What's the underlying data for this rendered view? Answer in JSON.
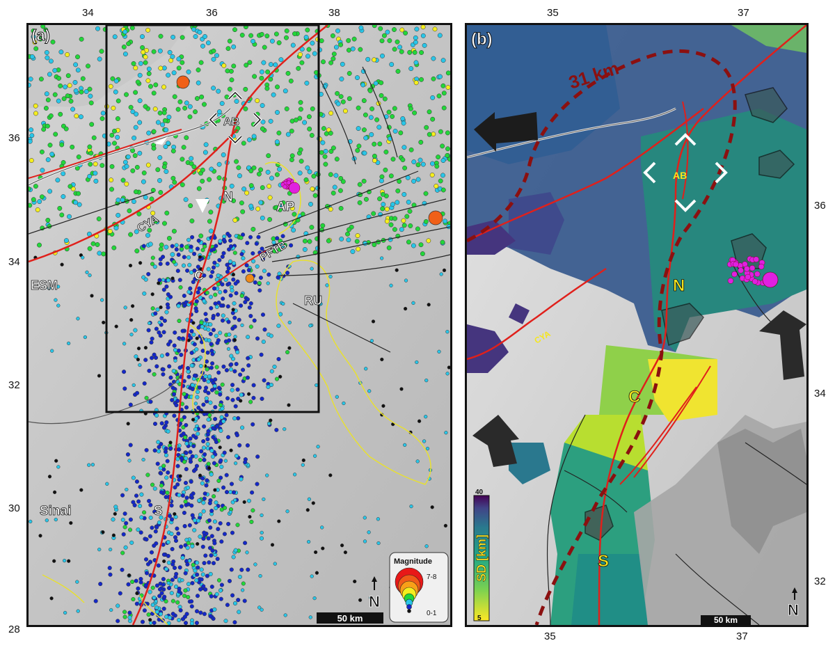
{
  "panel_a": {
    "label": "(a)",
    "lon_ticks": [
      "34",
      "36",
      "38"
    ],
    "lat_ticks": [
      "36",
      "34",
      "32",
      "30",
      "28"
    ],
    "place_labels": {
      "ab": "AB",
      "n": "N",
      "ap": "AP",
      "cya": "CYA",
      "pftb": "PFTB",
      "c": "C",
      "esm": "ESM",
      "ru": "RU",
      "sinai": "Sinai",
      "s": "S"
    },
    "legend": {
      "title": "Magnitude",
      "max": "7-8",
      "min": "0-1"
    },
    "scale_bar": "50 km",
    "north": "N"
  },
  "panel_b": {
    "label": "(b)",
    "lon_ticks": [
      "35",
      "37"
    ],
    "lat_ticks": [
      "36",
      "34",
      "32"
    ],
    "place_labels": {
      "ab": "AB",
      "n": "N",
      "cya": "CYA",
      "c": "C",
      "s": "S"
    },
    "depth_contour": "31 km",
    "colorbar": {
      "label": "SD [km]",
      "max": "40",
      "min": "5"
    },
    "scale_bar": "50 km",
    "north": "N"
  },
  "colors": {
    "fault_red": "#e0201b",
    "quake_green": "#22d63a",
    "quake_cyan": "#29c6e8",
    "quake_blue": "#1428c8",
    "quake_yellow": "#f5ee1e",
    "volcanic_yellow": "#e8e030",
    "ap_magenta": "#e020e0",
    "contour_darkred": "#8b1010"
  }
}
